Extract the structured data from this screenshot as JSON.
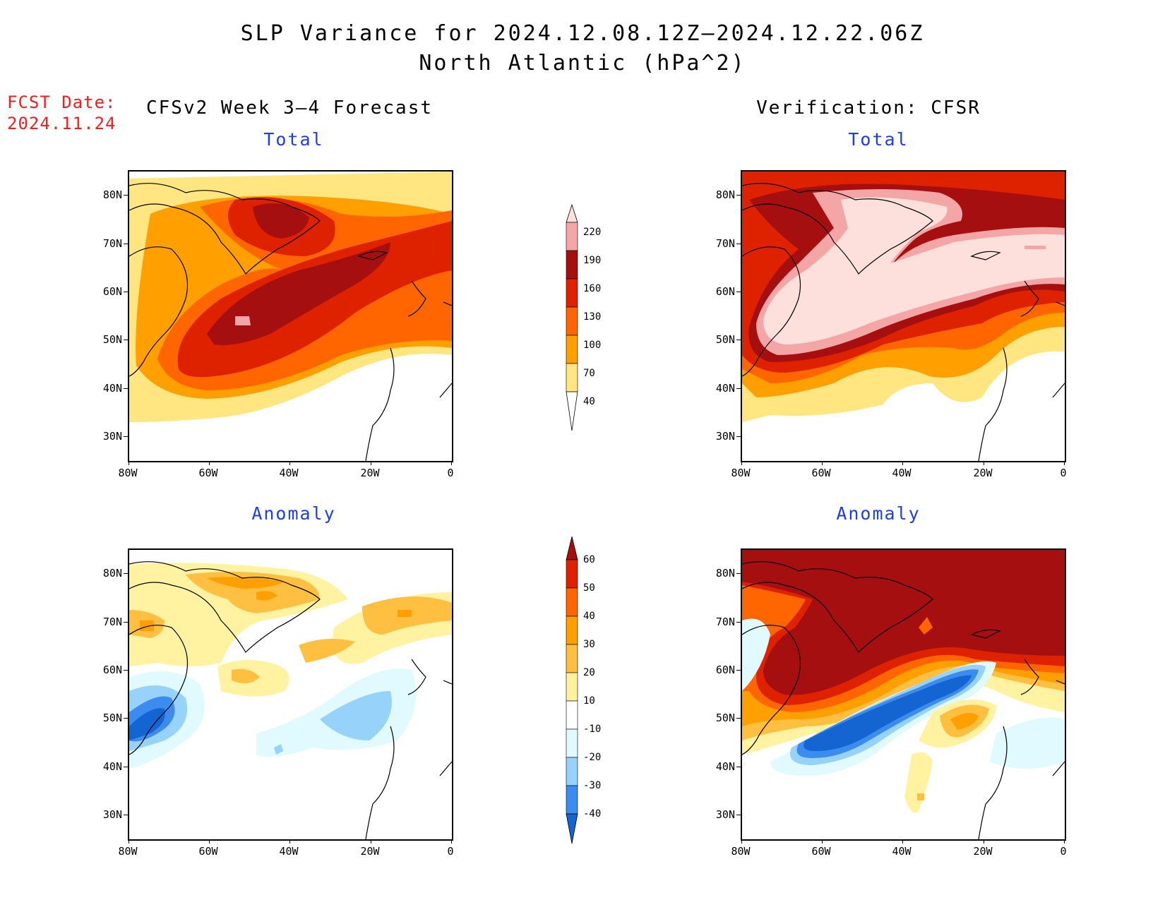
{
  "header": {
    "title_line1": "SLP Variance for 2024.12.08.12Z–2024.12.22.06Z",
    "title_line2": "North Atlantic (hPa^2)"
  },
  "fcst": {
    "line1": "FCST Date:",
    "line2": "2024.11.24"
  },
  "columns": {
    "left": "CFSv2 Week 3–4 Forecast",
    "right": "Verification: CFSR"
  },
  "panels": {
    "total": "Total",
    "anomaly": "Anomaly"
  },
  "axes": {
    "lat_labels": [
      "80N",
      "70N",
      "60N",
      "50N",
      "40N",
      "30N"
    ],
    "lon_labels": [
      "80W",
      "60W",
      "40W",
      "20W",
      "0"
    ]
  },
  "colorbars": {
    "total": {
      "levels": [
        "220",
        "190",
        "160",
        "130",
        "100",
        "70",
        "40"
      ],
      "colors": [
        "#fde0dc",
        "#f4a5a5",
        "#a50f0f",
        "#de2200",
        "#ff6600",
        "#ff9f00",
        "#ffe680"
      ]
    },
    "anomaly": {
      "levels": [
        "60",
        "50",
        "40",
        "30",
        "20",
        "10",
        "-10",
        "-20",
        "-30",
        "-40"
      ],
      "colors": [
        "#a50f0f",
        "#de2200",
        "#ff6600",
        "#ff9f00",
        "#ffbf40",
        "#fff2a0",
        "#ffffff",
        "#e0faff",
        "#96d2fa",
        "#3c8cf0",
        "#1464d2"
      ]
    }
  },
  "colors": {
    "title_red": "#ff1a1a",
    "subtitle_blue": "#1a3cff"
  }
}
